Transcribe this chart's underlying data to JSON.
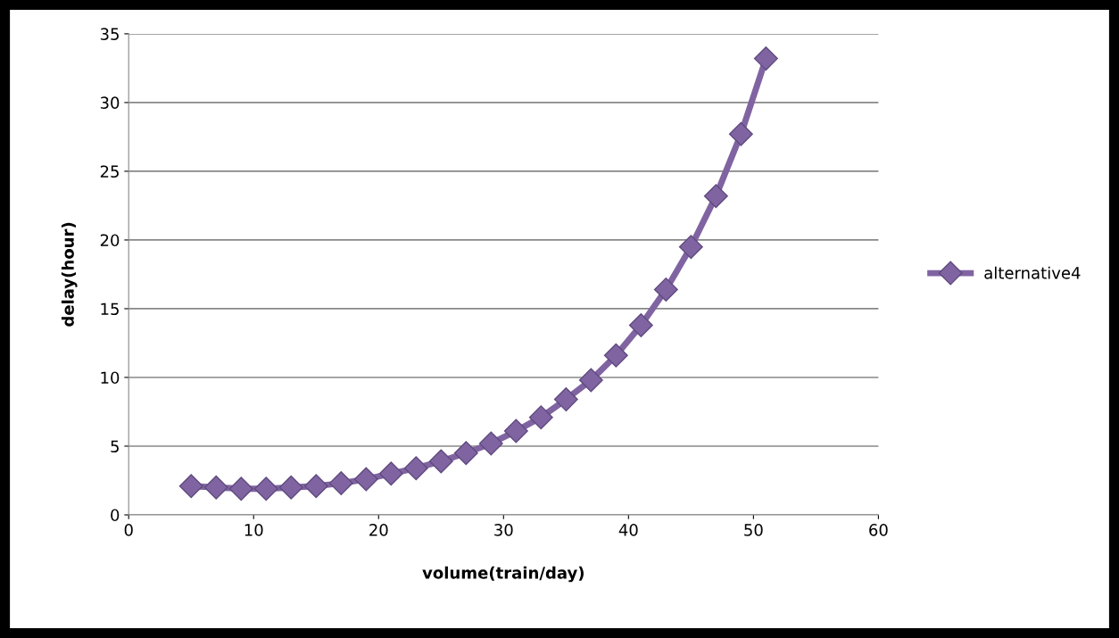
{
  "chart_data": {
    "type": "line",
    "xlabel": "volume(train/day)",
    "ylabel": "delay(hour)",
    "x": [
      5,
      7,
      9,
      11,
      13,
      15,
      17,
      19,
      21,
      23,
      25,
      27,
      29,
      31,
      33,
      35,
      37,
      39,
      41,
      43,
      45,
      47,
      49,
      51
    ],
    "series": [
      {
        "name": "alternative4",
        "color": "#8064a2",
        "values": [
          2.1,
          2.0,
          1.9,
          1.9,
          2.0,
          2.1,
          2.3,
          2.6,
          3.0,
          3.4,
          3.9,
          4.5,
          5.2,
          6.1,
          7.1,
          8.4,
          9.8,
          11.6,
          13.8,
          16.4,
          19.5,
          23.2,
          27.7,
          33.2
        ]
      }
    ],
    "xlim": [
      0,
      60
    ],
    "xticks": [
      0,
      10,
      20,
      30,
      40,
      50,
      60
    ],
    "ylim": [
      0,
      35
    ],
    "yticks": [
      0,
      5,
      10,
      15,
      20,
      25,
      30,
      35
    ],
    "grid": "y",
    "legend": "right",
    "marker": "diamond",
    "line_style": "solid"
  }
}
